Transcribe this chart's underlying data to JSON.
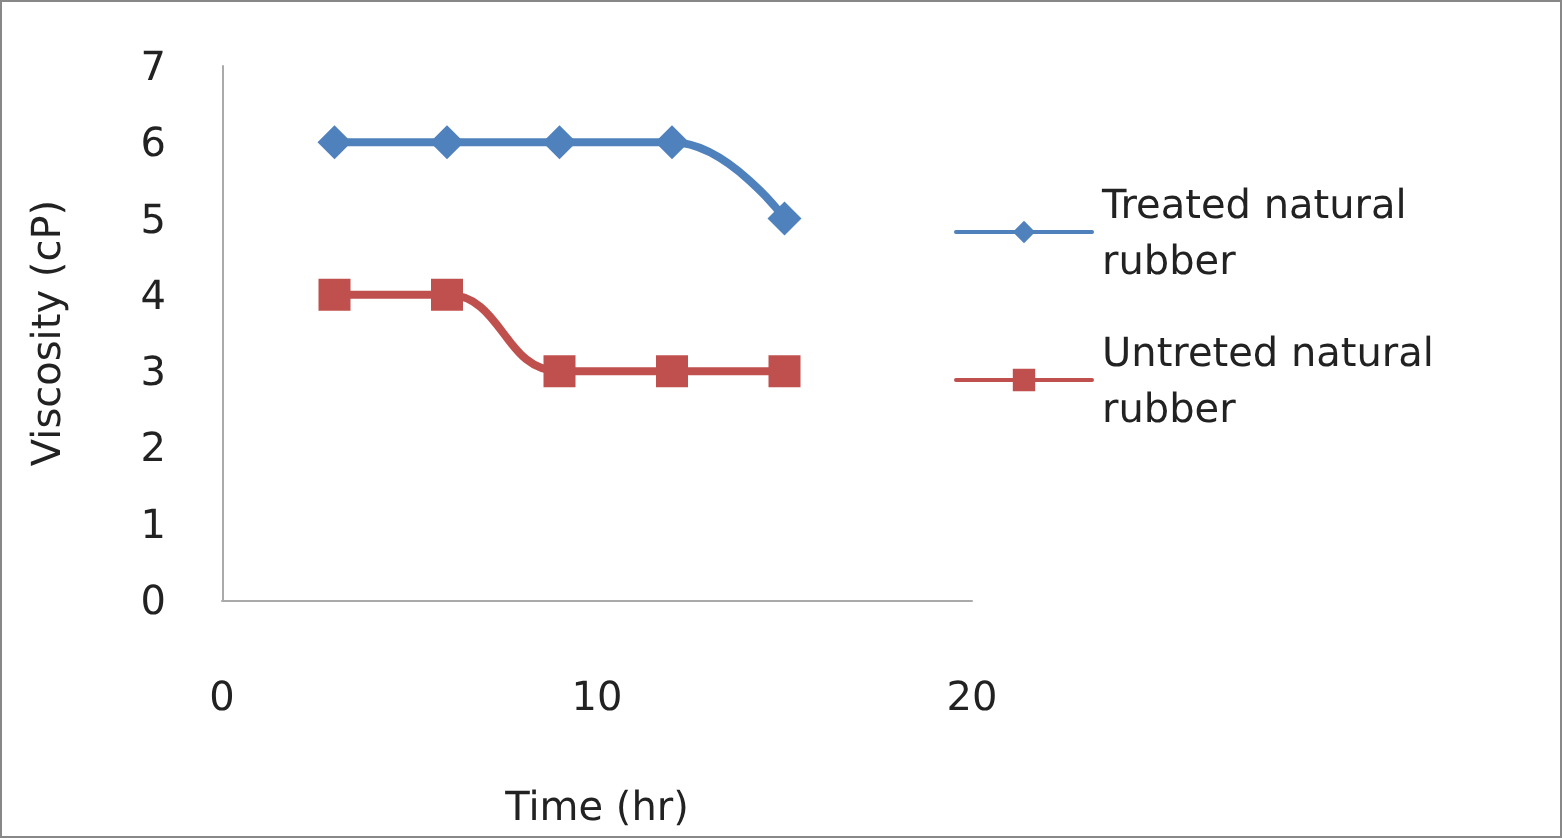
{
  "chart_data": {
    "type": "line",
    "xlabel": "Time (hr)",
    "ylabel": "Viscosity (cP)",
    "x": [
      3,
      6,
      9,
      12,
      15
    ],
    "series": [
      {
        "name": "Treated natural rubber",
        "color": "#4f81bd",
        "marker": "diamond",
        "values": [
          6,
          6,
          6,
          6,
          5
        ]
      },
      {
        "name": "Untreted natural rubber",
        "color": "#c0504d",
        "marker": "square",
        "values": [
          4,
          4,
          3,
          3,
          3
        ]
      }
    ],
    "xlim": [
      0,
      20
    ],
    "xticks": [
      0,
      10,
      20
    ],
    "ylim": [
      0,
      7
    ],
    "yticks": [
      0,
      1,
      2,
      3,
      4,
      5,
      6,
      7
    ],
    "grid": false,
    "legend": "right"
  }
}
